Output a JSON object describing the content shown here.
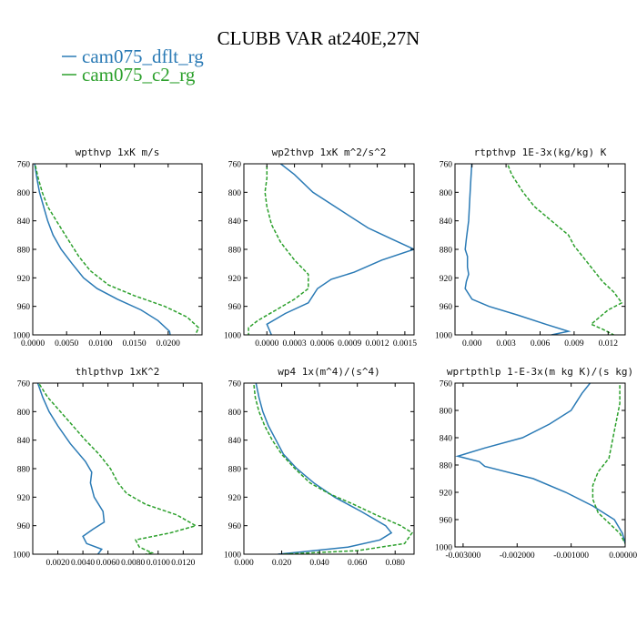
{
  "figure": {
    "title": "CLUBB VAR at240E,27N",
    "legend": [
      {
        "label": "cam075_dflt_rg",
        "color": "#2a7ab5",
        "dash": "solid"
      },
      {
        "label": "cam075_c2_rg",
        "color": "#2ca02c",
        "dash": "dashed"
      }
    ]
  },
  "chart_data": [
    {
      "type": "line",
      "title": "wpthvp  1xK m/s",
      "xlim": [
        0,
        0.025
      ],
      "ylim": [
        760,
        1000
      ],
      "y_inverted": true,
      "xticks": [
        0,
        0.005,
        0.01,
        0.015,
        0.02
      ],
      "xtick_labels": [
        "0.0000",
        "0.0050",
        "0.0100",
        "0.0150",
        "0.0200"
      ],
      "yticks": [
        760,
        800,
        840,
        880,
        920,
        960,
        1000
      ],
      "series": [
        {
          "name": "cam075_dflt_rg",
          "points": [
            [
              0.0002,
              755
            ],
            [
              0.0006,
              780
            ],
            [
              0.001,
              800
            ],
            [
              0.0016,
              820
            ],
            [
              0.0022,
              840
            ],
            [
              0.003,
              860
            ],
            [
              0.0042,
              880
            ],
            [
              0.0058,
              900
            ],
            [
              0.0075,
              920
            ],
            [
              0.0095,
              935
            ],
            [
              0.0125,
              950
            ],
            [
              0.016,
              965
            ],
            [
              0.0185,
              980
            ],
            [
              0.0202,
              995
            ],
            [
              0.0203,
              1000
            ]
          ]
        },
        {
          "name": "cam075_c2_rg",
          "points": [
            [
              0.0002,
              755
            ],
            [
              0.0008,
              780
            ],
            [
              0.0014,
              800
            ],
            [
              0.0022,
              820
            ],
            [
              0.0035,
              840
            ],
            [
              0.0048,
              860
            ],
            [
              0.0058,
              875
            ],
            [
              0.0068,
              890
            ],
            [
              0.0085,
              910
            ],
            [
              0.0112,
              930
            ],
            [
              0.015,
              945
            ],
            [
              0.0195,
              960
            ],
            [
              0.0228,
              975
            ],
            [
              0.0245,
              990
            ],
            [
              0.024,
              1000
            ]
          ]
        }
      ]
    },
    {
      "type": "line",
      "title": "wp2thvp  1xK m^2/s^2",
      "xlim": [
        -0.00025,
        0.0016
      ],
      "ylim": [
        760,
        1000
      ],
      "y_inverted": true,
      "xticks": [
        0,
        0.0003,
        0.0006,
        0.0009,
        0.0012,
        0.0015
      ],
      "xtick_labels": [
        "0.0000",
        "0.0003",
        "0.0006",
        "0.0009",
        "0.0012",
        "0.0015"
      ],
      "yticks": [
        760,
        800,
        840,
        880,
        920,
        960,
        1000
      ],
      "series": [
        {
          "name": "cam075_dflt_rg",
          "points": [
            [
              0.0001,
              755
            ],
            [
              0.0003,
              775
            ],
            [
              0.0005,
              800
            ],
            [
              0.0008,
              825
            ],
            [
              0.0011,
              850
            ],
            [
              0.00135,
              865
            ],
            [
              0.0016,
              880
            ],
            [
              0.00125,
              895
            ],
            [
              0.00095,
              912
            ],
            [
              0.0007,
              922
            ],
            [
              0.00055,
              935
            ],
            [
              0.00045,
              955
            ],
            [
              0.0002,
              970
            ],
            [
              0.0,
              985
            ],
            [
              5e-05,
              1000
            ]
          ]
        },
        {
          "name": "cam075_c2_rg",
          "points": [
            [
              0.0,
              755
            ],
            [
              0.0,
              780
            ],
            [
              -2e-05,
              800
            ],
            [
              0.0,
              820
            ],
            [
              5e-05,
              845
            ],
            [
              0.00015,
              870
            ],
            [
              0.0003,
              895
            ],
            [
              0.00045,
              915
            ],
            [
              0.00045,
              935
            ],
            [
              0.0003,
              950
            ],
            [
              0.0001,
              965
            ],
            [
              -0.0001,
              980
            ],
            [
              -0.0002,
              990
            ],
            [
              -0.0002,
              1000
            ]
          ]
        }
      ]
    },
    {
      "type": "line",
      "title": "rtpthvp  1E-3x(kg/kg) K",
      "xlim": [
        -0.0015,
        0.0135
      ],
      "ylim": [
        760,
        1000
      ],
      "y_inverted": true,
      "xticks": [
        0,
        0.003,
        0.006,
        0.009,
        0.012
      ],
      "xtick_labels": [
        "0.000",
        "0.003",
        "0.006",
        "0.009",
        "0.012"
      ],
      "yticks": [
        760,
        800,
        840,
        880,
        920,
        960,
        1000
      ],
      "series": [
        {
          "name": "cam075_dflt_rg",
          "points": [
            [
              0.0,
              755
            ],
            [
              -0.0001,
              780
            ],
            [
              -0.0002,
              810
            ],
            [
              -0.0003,
              840
            ],
            [
              -0.0005,
              865
            ],
            [
              -0.0006,
              880
            ],
            [
              -0.0004,
              890
            ],
            [
              -0.0004,
              905
            ],
            [
              -0.0003,
              915
            ],
            [
              -0.0005,
              925
            ],
            [
              -0.0006,
              935
            ],
            [
              0.0,
              950
            ],
            [
              0.0015,
              960
            ],
            [
              0.004,
              972
            ],
            [
              0.0065,
              985
            ],
            [
              0.0085,
              995
            ],
            [
              0.007,
              1000
            ]
          ]
        },
        {
          "name": "cam075_c2_rg",
          "points": [
            [
              0.003,
              755
            ],
            [
              0.0035,
              775
            ],
            [
              0.0045,
              800
            ],
            [
              0.0055,
              820
            ],
            [
              0.007,
              840
            ],
            [
              0.0085,
              860
            ],
            [
              0.009,
              875
            ],
            [
              0.0095,
              885
            ],
            [
              0.0105,
              905
            ],
            [
              0.0115,
              925
            ],
            [
              0.0125,
              940
            ],
            [
              0.0132,
              955
            ],
            [
              0.012,
              965
            ],
            [
              0.0105,
              985
            ],
            [
              0.0115,
              992
            ],
            [
              0.0125,
              1000
            ]
          ]
        }
      ]
    },
    {
      "type": "line",
      "title": "thlpthvp  1xK^2",
      "xlim": [
        0,
        0.0135
      ],
      "ylim": [
        760,
        1000
      ],
      "y_inverted": true,
      "xticks": [
        0.002,
        0.004,
        0.006,
        0.008,
        0.01,
        0.012
      ],
      "xtick_labels": [
        "0.0020",
        "0.0040",
        "0.0060",
        "0.0080",
        "0.0100",
        "0.0120"
      ],
      "yticks": [
        760,
        800,
        840,
        880,
        920,
        960,
        1000
      ],
      "series": [
        {
          "name": "cam075_dflt_rg",
          "points": [
            [
              0.0003,
              755
            ],
            [
              0.0008,
              780
            ],
            [
              0.0013,
              800
            ],
            [
              0.002,
              820
            ],
            [
              0.003,
              845
            ],
            [
              0.0042,
              870
            ],
            [
              0.0047,
              885
            ],
            [
              0.0046,
              900
            ],
            [
              0.0049,
              920
            ],
            [
              0.0056,
              940
            ],
            [
              0.0057,
              955
            ],
            [
              0.0048,
              965
            ],
            [
              0.004,
              975
            ],
            [
              0.0043,
              985
            ],
            [
              0.0055,
              993
            ],
            [
              0.0052,
              1000
            ]
          ]
        },
        {
          "name": "cam075_c2_rg",
          "points": [
            [
              0.0003,
              755
            ],
            [
              0.0012,
              780
            ],
            [
              0.0022,
              800
            ],
            [
              0.0032,
              820
            ],
            [
              0.0042,
              840
            ],
            [
              0.0053,
              860
            ],
            [
              0.0062,
              880
            ],
            [
              0.0068,
              900
            ],
            [
              0.0075,
              915
            ],
            [
              0.009,
              930
            ],
            [
              0.0115,
              945
            ],
            [
              0.013,
              960
            ],
            [
              0.011,
              970
            ],
            [
              0.0082,
              980
            ],
            [
              0.0085,
              990
            ],
            [
              0.0095,
              998
            ],
            [
              0.009,
              1000
            ]
          ]
        }
      ]
    },
    {
      "type": "line",
      "title": "wp4  1x(m^4)/(s^4)",
      "xlim": [
        0,
        0.09
      ],
      "ylim": [
        760,
        1000
      ],
      "y_inverted": true,
      "xticks": [
        0,
        0.02,
        0.04,
        0.06,
        0.08
      ],
      "xtick_labels": [
        "0.000",
        "0.020",
        "0.040",
        "0.060",
        "0.080"
      ],
      "yticks": [
        760,
        800,
        840,
        880,
        920,
        960,
        1000
      ],
      "series": [
        {
          "name": "cam075_dflt_rg",
          "points": [
            [
              0.006,
              755
            ],
            [
              0.008,
              780
            ],
            [
              0.01,
              800
            ],
            [
              0.013,
              820
            ],
            [
              0.017,
              840
            ],
            [
              0.021,
              860
            ],
            [
              0.028,
              880
            ],
            [
              0.037,
              900
            ],
            [
              0.048,
              920
            ],
            [
              0.062,
              940
            ],
            [
              0.075,
              960
            ],
            [
              0.078,
              970
            ],
            [
              0.072,
              980
            ],
            [
              0.055,
              990
            ],
            [
              0.03,
              997
            ],
            [
              0.018,
              1000
            ]
          ]
        },
        {
          "name": "cam075_c2_rg",
          "points": [
            [
              0.005,
              755
            ],
            [
              0.006,
              780
            ],
            [
              0.008,
              800
            ],
            [
              0.011,
              820
            ],
            [
              0.015,
              840
            ],
            [
              0.02,
              860
            ],
            [
              0.027,
              880
            ],
            [
              0.035,
              900
            ],
            [
              0.045,
              915
            ],
            [
              0.058,
              930
            ],
            [
              0.07,
              945
            ],
            [
              0.083,
              960
            ],
            [
              0.089,
              970
            ],
            [
              0.085,
              985
            ],
            [
              0.06,
              995
            ],
            [
              0.02,
              1000
            ]
          ]
        }
      ]
    },
    {
      "type": "line",
      "title": "wprtpthlp  1-E-3x(m kg K)/(s kg)",
      "xlim": [
        -0.00315,
        0
      ],
      "ylim": [
        760,
        1000
      ],
      "y_inverted": true,
      "xticks": [
        -0.003,
        -0.002,
        -0.001,
        0
      ],
      "xtick_labels": [
        "-0.003000",
        "-0.002000",
        "-0.001000",
        "0.000000"
      ],
      "yticks": [
        760,
        800,
        840,
        880,
        920,
        960,
        1000
      ],
      "series": [
        {
          "name": "cam075_dflt_rg",
          "points": [
            [
              -0.0006,
              755
            ],
            [
              -0.0008,
              775
            ],
            [
              -0.001,
              800
            ],
            [
              -0.0014,
              820
            ],
            [
              -0.0019,
              840
            ],
            [
              -0.0026,
              855
            ],
            [
              -0.0031,
              867
            ],
            [
              -0.0027,
              875
            ],
            [
              -0.0026,
              882
            ],
            [
              -0.0017,
              900
            ],
            [
              -0.0011,
              920
            ],
            [
              -0.0006,
              940
            ],
            [
              -0.0002,
              960
            ],
            [
              -5e-05,
              980
            ],
            [
              0.0,
              995
            ]
          ]
        },
        {
          "name": "cam075_c2_rg",
          "points": [
            [
              -0.0001,
              755
            ],
            [
              -0.0001,
              790
            ],
            [
              -0.0002,
              830
            ],
            [
              -0.0003,
              870
            ],
            [
              -0.0005,
              890
            ],
            [
              -0.0006,
              910
            ],
            [
              -0.0006,
              930
            ],
            [
              -0.0005,
              950
            ],
            [
              -0.0003,
              965
            ],
            [
              -0.0001,
              980
            ],
            [
              0.0,
              995
            ]
          ]
        }
      ]
    }
  ]
}
